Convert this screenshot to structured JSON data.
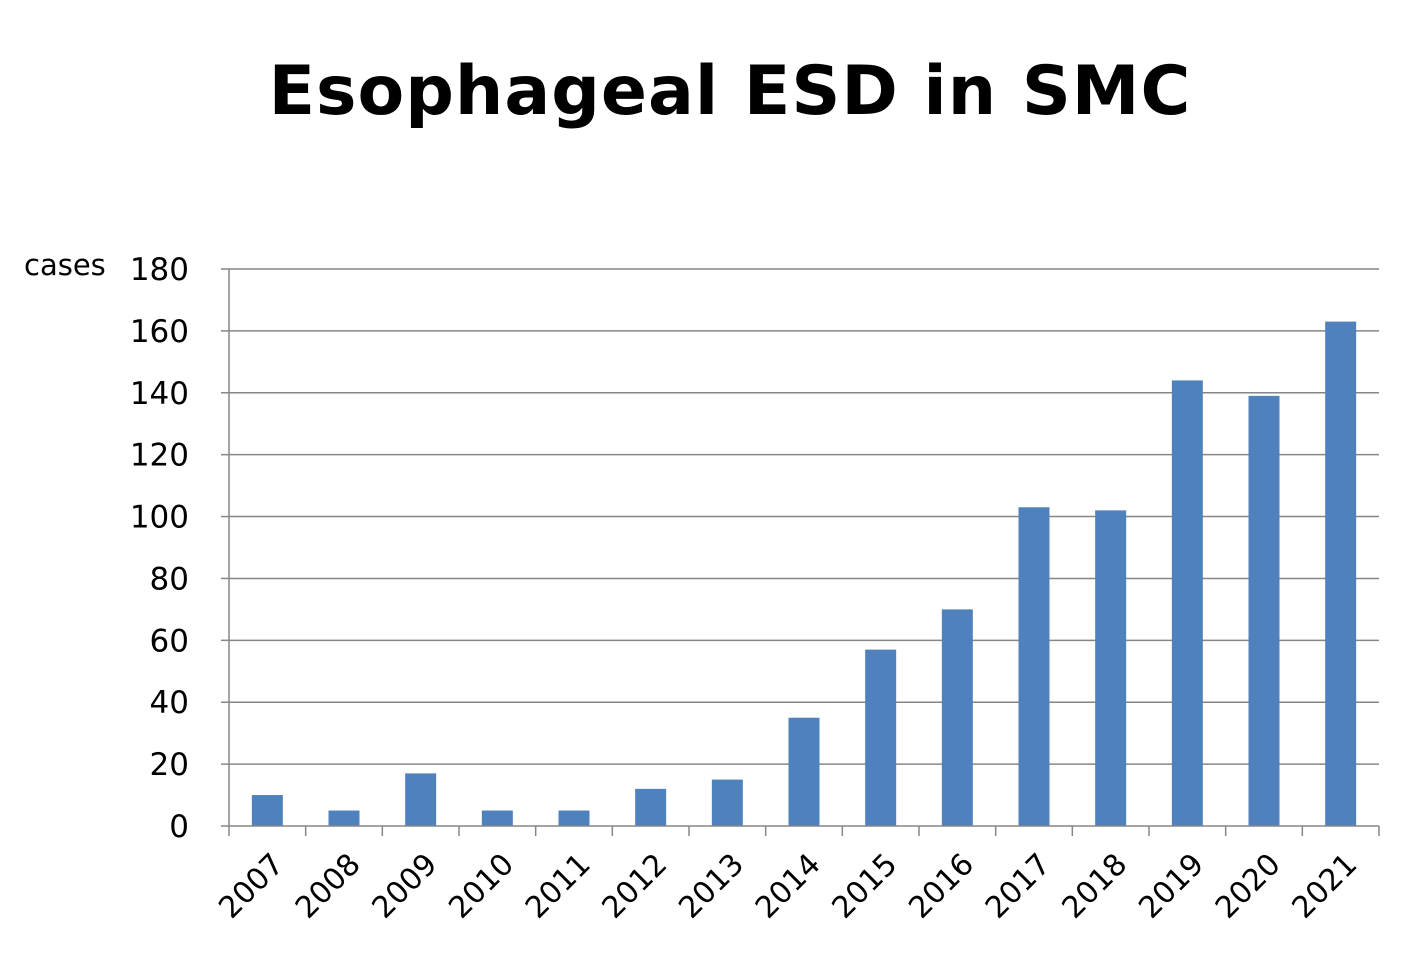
{
  "chart_data": {
    "type": "bar",
    "title": "Esophageal ESD in SMC",
    "xlabel": "",
    "ylabel": "cases",
    "categories": [
      "2007",
      "2008",
      "2009",
      "2010",
      "2011",
      "2012",
      "2013",
      "2014",
      "2015",
      "2016",
      "2017",
      "2018",
      "2019",
      "2020",
      "2021"
    ],
    "series": [
      {
        "values": [
          10,
          5,
          17,
          5,
          5,
          12,
          15,
          35,
          57,
          70,
          103,
          102,
          144,
          139,
          163
        ]
      }
    ],
    "ylim": [
      0,
      180
    ],
    "yticks": [
      0,
      20,
      40,
      60,
      80,
      100,
      120,
      140,
      160,
      180
    ],
    "grid": true,
    "legend": "none",
    "colors": {
      "bar": "#4f81bd",
      "grid": "#868686",
      "axis": "#868686"
    }
  }
}
